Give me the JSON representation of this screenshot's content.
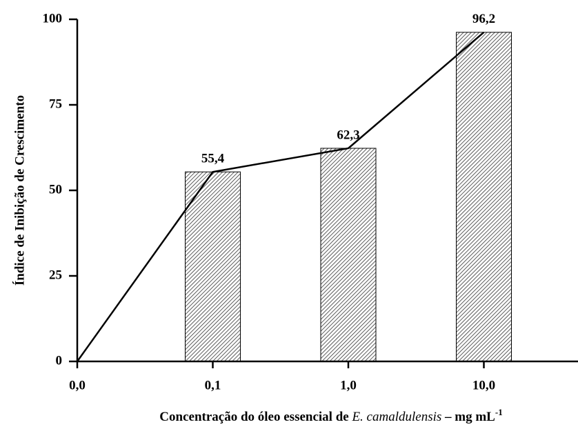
{
  "chart_data": {
    "type": "bar",
    "ylabel": "Índice de Inibição de Crescimento",
    "xlabel_parts": [
      "Concentração do óleo essencial de ",
      "E. camaldulensis",
      " – mg mL",
      "-1"
    ],
    "categories": [
      "0,0",
      "0,1",
      "1,0",
      "10,0"
    ],
    "series": [
      {
        "type": "bar",
        "color": "#000000",
        "values": [
          null,
          55.4,
          62.3,
          96.2
        ],
        "value_labels": [
          null,
          "55,4",
          "62,3",
          "96,2"
        ]
      },
      {
        "type": "line",
        "color": "#000000",
        "values": [
          0,
          55.4,
          62.3,
          96.2
        ]
      }
    ],
    "ylim": [
      0,
      100
    ],
    "yticks": [
      0,
      25,
      50,
      75,
      100
    ],
    "grid": false
  }
}
